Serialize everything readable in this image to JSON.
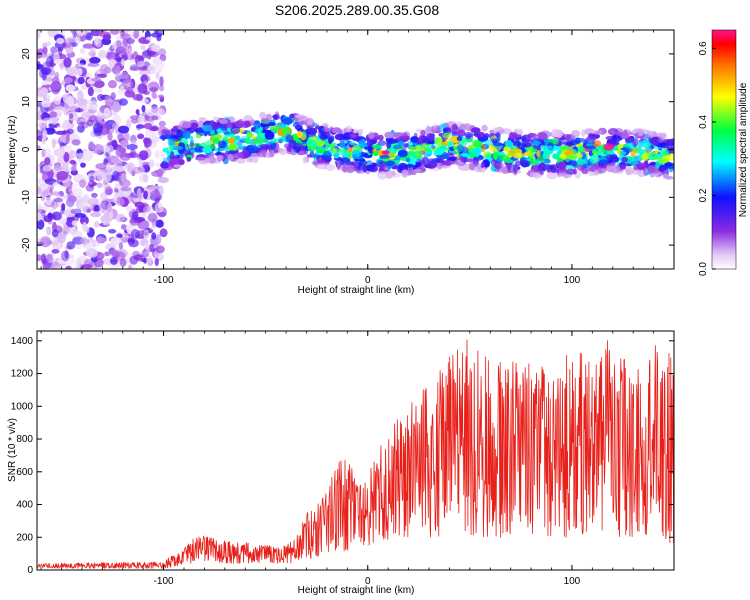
{
  "title": "S206.2025.289.00.35.G08",
  "colors": {
    "snr_line": "#e8201a",
    "axis": "#000000",
    "background": "#ffffff"
  },
  "chart_data": [
    {
      "type": "heatmap",
      "title": "S206.2025.289.00.35.G08",
      "xlabel": "Height of straight line (km)",
      "ylabel": "Frequency (Hz)",
      "xlim": [
        -162,
        150
      ],
      "ylim": [
        -25,
        25
      ],
      "xticks": [
        -100,
        0,
        100
      ],
      "xtick_labels": [
        "-100",
        "0",
        "100"
      ],
      "yticks": [
        -20,
        -10,
        0,
        10,
        20
      ],
      "ytick_labels": [
        "-20",
        "-10",
        "0",
        "10",
        "20"
      ],
      "colorbar": {
        "label": "Normalized spectral amplitude",
        "range": [
          0.0,
          0.65
        ],
        "ticks": [
          0.0,
          0.2,
          0.4,
          0.6
        ],
        "tick_labels": [
          "0.0",
          "0.2",
          "0.4",
          "0.6"
        ]
      },
      "features": {
        "noise_region_x": [
          -162,
          -100
        ],
        "signal_band_x": [
          -100,
          150
        ],
        "signal_center_hz": [
          [
            -100,
            0
          ],
          [
            -80,
            2
          ],
          [
            -60,
            2
          ],
          [
            -40,
            4
          ],
          [
            -25,
            1
          ],
          [
            -10,
            0
          ],
          [
            0,
            -1
          ],
          [
            20,
            -1
          ],
          [
            40,
            1
          ],
          [
            60,
            0
          ],
          [
            80,
            -1
          ],
          [
            100,
            -1
          ],
          [
            120,
            0
          ],
          [
            140,
            -1
          ],
          [
            150,
            -2
          ]
        ]
      }
    },
    {
      "type": "line",
      "xlabel": "Height of straight line (km)",
      "ylabel": "SNR (10 * v/v)",
      "xlim": [
        -162,
        150
      ],
      "ylim": [
        0,
        1460
      ],
      "xticks": [
        -100,
        0,
        100
      ],
      "xtick_labels": [
        "-100",
        "0",
        "100"
      ],
      "yticks": [
        0,
        200,
        400,
        600,
        800,
        1000,
        1200,
        1400
      ],
      "ytick_labels": [
        "0",
        "200",
        "400",
        "600",
        "800",
        "1000",
        "1200",
        "1400"
      ],
      "envelope": {
        "x": [
          -162,
          -100,
          -90,
          -85,
          -80,
          -70,
          -60,
          -50,
          -40,
          -35,
          -30,
          -25,
          -20,
          -15,
          -10,
          -5,
          0,
          10,
          20,
          30,
          40,
          50,
          60,
          70,
          80,
          90,
          100,
          110,
          120,
          130,
          140,
          150
        ],
        "min": [
          10,
          10,
          30,
          40,
          50,
          40,
          40,
          40,
          40,
          40,
          60,
          80,
          100,
          120,
          110,
          150,
          150,
          180,
          200,
          200,
          200,
          200,
          200,
          200,
          200,
          200,
          200,
          200,
          200,
          200,
          200,
          150
        ],
        "max": [
          40,
          50,
          150,
          200,
          210,
          180,
          170,
          150,
          150,
          200,
          350,
          400,
          500,
          650,
          700,
          520,
          600,
          850,
          1000,
          1150,
          1300,
          1450,
          1350,
          1280,
          1300,
          1200,
          1350,
          1300,
          1450,
          1200,
          1400,
          1300
        ]
      }
    }
  ]
}
